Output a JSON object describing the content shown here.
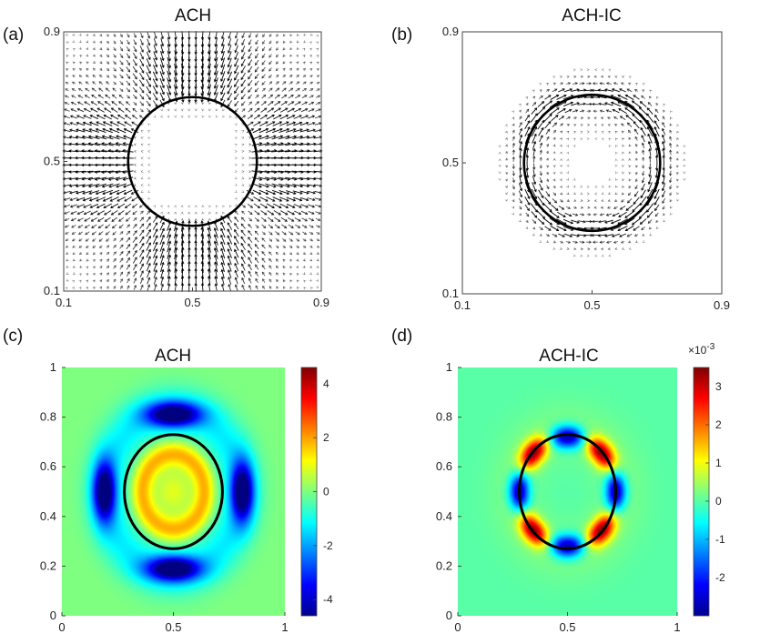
{
  "chart_data": [
    {
      "panel": "(a)",
      "type": "quiver",
      "title": "ACH",
      "xlim": [
        0.1,
        0.9
      ],
      "ylim": [
        0.1,
        0.9
      ],
      "xticks": [
        "0.1",
        "0.5",
        "0.9"
      ],
      "yticks": [
        "0.1",
        "0.5",
        "0.9"
      ],
      "circle": {
        "center": [
          0.5,
          0.5
        ],
        "radius": 0.2
      },
      "field": "velocity strongest outside the circle near left/right and top/bottom boundaries, near-zero inside"
    },
    {
      "panel": "(b)",
      "type": "quiver",
      "title": "ACH-IC",
      "xlim": [
        0.1,
        0.9
      ],
      "ylim": [
        0.1,
        0.9
      ],
      "xticks": [
        "0.1",
        "0.5",
        "0.9"
      ],
      "yticks": [
        "0.1",
        "0.5",
        "0.9"
      ],
      "circle": {
        "center": [
          0.5,
          0.5
        ],
        "radius": 0.21
      },
      "field": "velocity concentrated on a thin band along the interface, near-zero elsewhere"
    },
    {
      "panel": "(c)",
      "type": "heatmap",
      "title": "ACH",
      "xlim": [
        0,
        1
      ],
      "ylim": [
        0,
        1
      ],
      "xticks": [
        "0",
        "0.5",
        "1"
      ],
      "yticks": [
        "0",
        "0.2",
        "0.4",
        "0.6",
        "0.8",
        "1"
      ],
      "colorbar": {
        "min": -4.6,
        "max": 4.6,
        "ticks": [
          "-4",
          "-2",
          "0",
          "2",
          "4"
        ],
        "exponent": ""
      },
      "contour": {
        "center": [
          0.5,
          0.5
        ],
        "rx": 0.22,
        "ry": 0.23
      },
      "features": "four negative (blue) lobes at (0.5,0.2), (0.5,0.8), (0.2,0.5), (0.8,0.5); weak positive ring inside the circle"
    },
    {
      "panel": "(d)",
      "type": "heatmap",
      "title": "ACH-IC",
      "xlim": [
        0,
        1
      ],
      "ylim": [
        0,
        1
      ],
      "xticks": [
        "0",
        "0.5",
        "1"
      ],
      "yticks": [
        "0",
        "0.2",
        "0.4",
        "0.6",
        "0.8",
        "1"
      ],
      "colorbar": {
        "min": -3.0,
        "max": 3.5,
        "ticks": [
          "-2",
          "-1",
          "0",
          "1",
          "2",
          "3"
        ],
        "exponent": "×10-3"
      },
      "contour": {
        "center": [
          0.5,
          0.5
        ],
        "rx": 0.22,
        "ry": 0.23
      },
      "features": "six alternating lobes on the interface: negative at top/bottom/left/right points, positive at the four diagonal points"
    }
  ]
}
